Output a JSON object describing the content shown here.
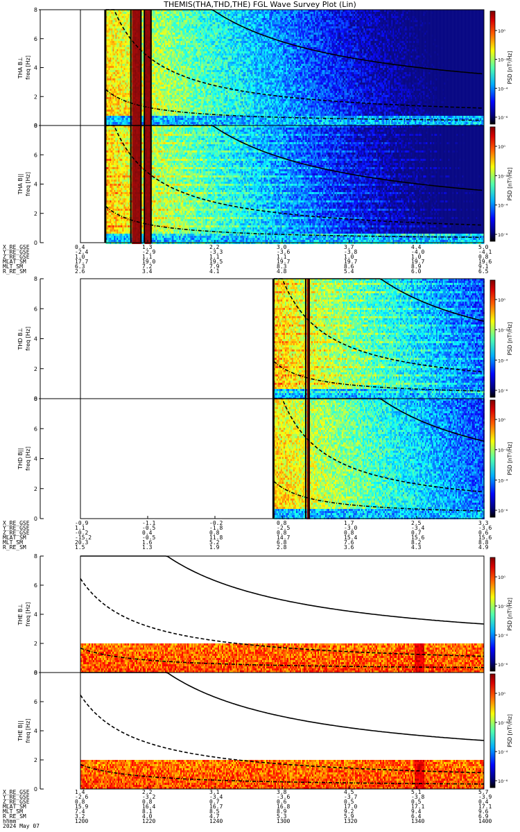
{
  "title": "THEMIS(THA,THD,THE) FGL Wave Survey Plot (Lin)",
  "colorbar_label": "PSD [nT²/Hz]",
  "colorbar_ticks": [
    "10⁰",
    "10⁻²",
    "10⁻⁴",
    "10⁻⁶"
  ],
  "freq_axis": {
    "ticks": [
      "0",
      "2",
      "4",
      "6",
      "8"
    ],
    "ylim": [
      0,
      8
    ],
    "label": "freq [Hz]"
  },
  "panel_labels": [
    "THA B⊥",
    "THA B||",
    "THD B⊥",
    "THD B||",
    "THE B⊥",
    "THE B||"
  ],
  "ephemeris": [
    {
      "rows": [
        {
          "label": "X_RE_GSE",
          "values": [
            "0.4",
            "1.3",
            "2.2",
            "3.0",
            "3.7",
            "4.4",
            "5.0"
          ]
        },
        {
          "label": "Y_RE_GSE",
          "values": [
            "-2.4",
            "-2.9",
            "-3.3",
            "-3.6",
            "-3.8",
            "-4.0",
            "-4.1"
          ]
        },
        {
          "label": "Z_RE_GSE",
          "values": [
            "1.0",
            "1.1",
            "1.1",
            "1.1",
            "1.0",
            "1.0",
            "0.8"
          ]
        },
        {
          "label": "MLAT_SM",
          "values": [
            "17.7",
            "19.0",
            "19.5",
            "19.7",
            "19.7",
            "19.7",
            "19.6"
          ]
        },
        {
          "label": "MLT_SM",
          "values": [
            "6.3",
            "7.2",
            "7.9",
            "8.3",
            "8.6",
            "8.9",
            "9.1"
          ]
        },
        {
          "label": "R_RE_SM",
          "values": [
            "2.6",
            "3.4",
            "4.1",
            "4.8",
            "5.4",
            "6.0",
            "6.5"
          ]
        }
      ]
    },
    {
      "rows": [
        {
          "label": "X_RE_GSE",
          "values": [
            "-0.9",
            "-1.1",
            "-0.2",
            "0.8",
            "1.7",
            "2.5",
            "3.3"
          ]
        },
        {
          "label": "Y_RE_GSE",
          "values": [
            "1.1",
            "-0.5",
            "-1.8",
            "-2.5",
            "-3.0",
            "-3.4",
            "-3.6"
          ]
        },
        {
          "label": "Z_RE_GSE",
          "values": [
            "-0.2",
            "0.4",
            "0.8",
            "0.8",
            "0.8",
            "0.7",
            "0.6"
          ]
        },
        {
          "label": "MLAT_SM",
          "values": [
            "-15.2",
            "-0.5",
            "11.8",
            "14.7",
            "15.4",
            "15.6",
            "15.6"
          ]
        },
        {
          "label": "MLT_SM",
          "values": [
            "20.3",
            "1.6",
            "5.2",
            "6.8",
            "7.6",
            "8.2",
            "8.8"
          ]
        },
        {
          "label": "R_RE_SM",
          "values": [
            "1.5",
            "1.3",
            "1.9",
            "2.8",
            "3.6",
            "4.3",
            "4.9"
          ]
        }
      ]
    },
    {
      "rows": [
        {
          "label": "X_RE_GSE",
          "values": [
            "1.4",
            "2.2",
            "3.1",
            "3.8",
            "4.5",
            "5.1",
            "5.7"
          ]
        },
        {
          "label": "Y_RE_GSE",
          "values": [
            "-2.6",
            "-3.2",
            "-3.4",
            "-3.6",
            "-3.7",
            "-3.8",
            "-3.9"
          ]
        },
        {
          "label": "Z_RE_GSE",
          "values": [
            "0.8",
            "0.8",
            "0.7",
            "0.6",
            "0.5",
            "0.5",
            "0.4"
          ]
        },
        {
          "label": "MLAT_SM",
          "values": [
            "15.9",
            "16.4",
            "16.7",
            "16.8",
            "17.0",
            "17.1",
            "17.1"
          ]
        },
        {
          "label": "MLT_SM",
          "values": [
            "7.4",
            "8.1",
            "8.5",
            "8.9",
            "9.2",
            "9.4",
            "9.6"
          ]
        },
        {
          "label": "R_RE_SM",
          "values": [
            "3.2",
            "4.0",
            "4.7",
            "5.3",
            "5.9",
            "6.4",
            "6.9"
          ]
        },
        {
          "label": "hhmm",
          "values": [
            "1200",
            "1220",
            "1240",
            "1300",
            "1320",
            "1340",
            "1400"
          ]
        }
      ],
      "date": "2024 May 07"
    }
  ],
  "chart_data": {
    "type": "heatmap",
    "x_axis": {
      "ticks": [
        "1200",
        "1220",
        "1240",
        "1300",
        "1320",
        "1340",
        "1400"
      ],
      "label": "hhmm"
    },
    "y_axis": {
      "label": "freq [Hz]",
      "range": [
        0,
        8
      ]
    },
    "color_axis": {
      "label": "PSD [nT²/Hz]",
      "scale": "log",
      "range_exponent": [
        -7,
        1
      ]
    },
    "panels": [
      {
        "probe": "THA",
        "component": "B⊥",
        "data_start_min": 7.5,
        "gap_minutes": [
          [
            15,
            18
          ],
          [
            19,
            21
          ]
        ],
        "fce_line_start_min": 21.5
      },
      {
        "probe": "THA",
        "component": "B||",
        "data_start_min": 7.5,
        "gap_minutes": [
          [
            15,
            18
          ],
          [
            19,
            21
          ]
        ],
        "fce_line_start_min": 21.5
      },
      {
        "probe": "THD",
        "component": "B⊥",
        "data_start_min": 57.5,
        "gap_minutes": [
          [
            67,
            68
          ]
        ],
        "fce_line_start_min": 68.5
      },
      {
        "probe": "THD",
        "component": "B||",
        "data_start_min": 57.5,
        "gap_minutes": [
          [
            67,
            68
          ]
        ],
        "fce_line_start_min": 68.5
      },
      {
        "probe": "THE",
        "component": "B⊥",
        "data_start_min": 0,
        "band_top_hz": 2.0,
        "fce_line_start_min": 12
      },
      {
        "probe": "THE",
        "component": "B||",
        "data_start_min": 0,
        "band_top_hz": 2.0,
        "fce_line_start_min": 12
      }
    ]
  }
}
